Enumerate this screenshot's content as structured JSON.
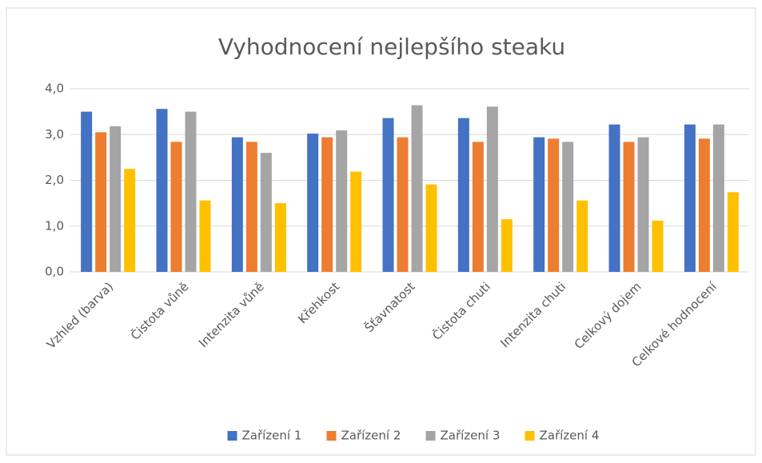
{
  "chart_data": {
    "type": "bar",
    "title": "Vyhodnocení nejlepšího steaku",
    "categories": [
      "Vzhled (barva)",
      "Čistota vůně",
      "Intenzita vůně",
      "Křehkost",
      "Šťavnatost",
      "Čistota chuti",
      "Intenzita chuti",
      "Celkový dojem",
      "Celkové hodnocení"
    ],
    "series": [
      {
        "name": "Zařízení 1",
        "color": "#4472c4",
        "values": [
          3.5,
          3.56,
          2.94,
          3.02,
          3.36,
          3.36,
          2.94,
          3.22,
          3.22
        ]
      },
      {
        "name": "Zařízení 2",
        "color": "#ed7d31",
        "values": [
          3.05,
          2.84,
          2.84,
          2.94,
          2.94,
          2.84,
          2.91,
          2.84,
          2.91
        ]
      },
      {
        "name": "Zařízení 3",
        "color": "#a5a5a5",
        "values": [
          3.18,
          3.5,
          2.6,
          3.09,
          3.64,
          3.61,
          2.84,
          2.94,
          3.22
        ]
      },
      {
        "name": "Zařízení 4",
        "color": "#ffc000",
        "values": [
          2.25,
          1.56,
          1.5,
          2.19,
          1.91,
          1.15,
          1.56,
          1.12,
          1.74
        ]
      }
    ],
    "ylim": [
      0,
      4
    ],
    "yticks": [
      {
        "value": 0,
        "label": "0,0"
      },
      {
        "value": 1,
        "label": "1,0"
      },
      {
        "value": 2,
        "label": "2,0"
      },
      {
        "value": 3,
        "label": "3,0"
      },
      {
        "value": 4,
        "label": "4,0"
      }
    ],
    "grid": true,
    "legend": "bottom"
  }
}
